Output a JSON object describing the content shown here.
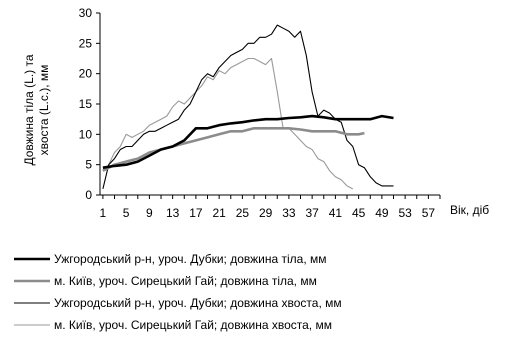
{
  "chart_data": {
    "type": "line",
    "ylabel": "Довжина тіла (L.) та хвоста (L.c.), мм",
    "ylabel_lines": [
      "Довжина тіла (L.) та",
      "хвоста (L.c.), мм"
    ],
    "xlabel": "Вік, діб",
    "ylim": [
      0,
      30
    ],
    "yticks": [
      0,
      5,
      10,
      15,
      20,
      25,
      30
    ],
    "xlim": [
      1,
      59
    ],
    "xticks": [
      1,
      5,
      9,
      13,
      17,
      21,
      25,
      29,
      33,
      37,
      41,
      45,
      49,
      53,
      57
    ],
    "grid": false,
    "legend_position": "bottom",
    "series": [
      {
        "name": "Ужгородський р-н, уроч. Дубки; довжина тіла, мм",
        "color": "#000000",
        "width": 2.6,
        "x": [
          1,
          3,
          5,
          7,
          9,
          11,
          13,
          15,
          17,
          19,
          21,
          23,
          25,
          27,
          29,
          31,
          33,
          35,
          37,
          39,
          41,
          43,
          45,
          47,
          49,
          51
        ],
        "y": [
          4.5,
          4.8,
          5,
          5.5,
          6.5,
          7.5,
          8,
          9,
          11,
          11,
          11.5,
          11.8,
          12,
          12.3,
          12.5,
          12.5,
          12.7,
          12.8,
          13,
          12.8,
          12.5,
          12.5,
          12.5,
          12.5,
          13,
          12.7
        ]
      },
      {
        "name": "м. Київ, уроч. Сирецький Гай; довжина тіла, мм",
        "color": "#8c8c8c",
        "width": 2.6,
        "x": [
          1,
          3,
          5,
          7,
          9,
          11,
          13,
          15,
          17,
          19,
          21,
          23,
          25,
          27,
          29,
          31,
          33,
          35,
          37,
          39,
          41,
          43,
          45,
          46
        ],
        "y": [
          4,
          5,
          5.5,
          6,
          7,
          7.5,
          8,
          8.5,
          9,
          9.5,
          10,
          10.5,
          10.5,
          11,
          11,
          11,
          11,
          10.8,
          10.5,
          10.5,
          10.5,
          10,
          10,
          10.2
        ]
      },
      {
        "name": "Ужгородський р-н, уроч. Дубки; довжина хвоста, мм",
        "color": "#000000",
        "width": 1.1,
        "x": [
          1,
          2,
          3,
          4,
          5,
          6,
          7,
          8,
          9,
          10,
          11,
          12,
          13,
          14,
          15,
          16,
          17,
          18,
          19,
          20,
          21,
          22,
          23,
          24,
          25,
          26,
          27,
          28,
          29,
          30,
          31,
          32,
          33,
          34,
          35,
          36,
          37,
          38,
          39,
          40,
          41,
          42,
          43,
          44,
          45,
          46,
          47,
          48,
          49,
          50,
          51
        ],
        "y": [
          1,
          5,
          6,
          7.5,
          8,
          8,
          9,
          10,
          10.5,
          10.5,
          11,
          11.5,
          12,
          12.5,
          14,
          15,
          17,
          19,
          20,
          19.5,
          21,
          22,
          23,
          23.5,
          24,
          25,
          25,
          26,
          26,
          26.5,
          28,
          27.5,
          27,
          26,
          27,
          23,
          17,
          13,
          14,
          13.5,
          12.5,
          12,
          9,
          8,
          5,
          4.5,
          3,
          2,
          1.5,
          1.5,
          1.5
        ]
      },
      {
        "name": "м. Київ, уроч. Сирецький Гай; довжина хвоста, мм",
        "color": "#9a9a9a",
        "width": 1.1,
        "x": [
          1,
          2,
          3,
          4,
          5,
          6,
          7,
          8,
          9,
          10,
          11,
          12,
          13,
          14,
          15,
          16,
          17,
          18,
          19,
          20,
          21,
          22,
          23,
          24,
          25,
          26,
          27,
          28,
          29,
          30,
          31,
          32,
          33,
          34,
          35,
          36,
          37,
          38,
          39,
          40,
          41,
          42,
          43,
          44
        ],
        "y": [
          4,
          5,
          7,
          8,
          10,
          9.5,
          10,
          10.5,
          11.5,
          12,
          12.5,
          13,
          14.5,
          15.5,
          15,
          16,
          17,
          18,
          19.5,
          19,
          20.5,
          20,
          21,
          21.5,
          22,
          22.5,
          22.5,
          22,
          21.5,
          22.5,
          17,
          11,
          11,
          10,
          9,
          8,
          7.5,
          6,
          5.5,
          4,
          3,
          2.5,
          1.5,
          1
        ]
      }
    ]
  }
}
